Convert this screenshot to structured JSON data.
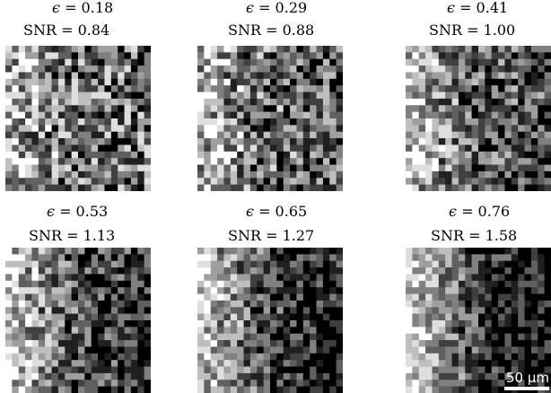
{
  "figure": {
    "epsilon_symbol": "ϵ",
    "snr_prefix": "SNR",
    "panels": [
      {
        "epsilon_text": "= 0.18",
        "snr_text": "= 0.84",
        "epsilon": 0.18,
        "snr": 0.84
      },
      {
        "epsilon_text": "= 0.29",
        "snr_text": "= 0.88",
        "epsilon": 0.29,
        "snr": 0.88
      },
      {
        "epsilon_text": "= 0.41",
        "snr_text": "= 1.00",
        "epsilon": 0.41,
        "snr": 1.0
      },
      {
        "epsilon_text": "= 0.53",
        "snr_text": "= 1.13",
        "epsilon": 0.53,
        "snr": 1.13
      },
      {
        "epsilon_text": "= 0.65",
        "snr_text": "= 1.27",
        "epsilon": 0.65,
        "snr": 1.27
      },
      {
        "epsilon_text": "= 0.76",
        "snr_text": "= 1.58",
        "epsilon": 0.76,
        "snr": 1.58
      }
    ],
    "scalebar_label": "50 μm"
  },
  "colors": {
    "background": "#ffffff",
    "image_background": "#000000",
    "scalebar": "#ffffff"
  }
}
